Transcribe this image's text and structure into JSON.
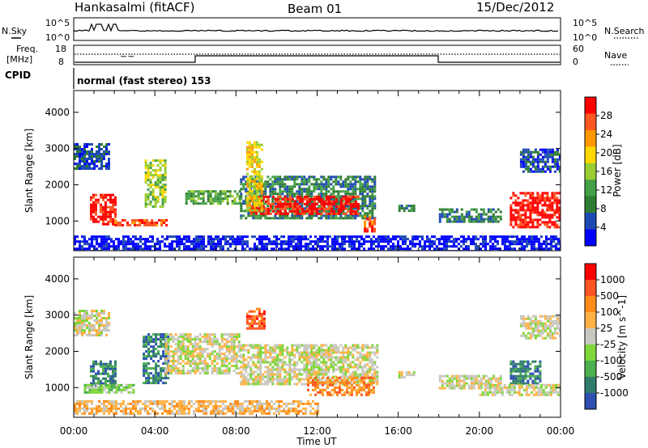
{
  "header": {
    "station": "Hankasalmi (fitACF)",
    "beam": "Beam 01",
    "date": "15/Dec/2012"
  },
  "top_panels": {
    "nsky_label": "N.Sky",
    "nsky_ticks": [
      "10^5",
      "10^0"
    ],
    "nsearch_label": "N.Search",
    "nsearch_ticks": [
      "10^5",
      "10^0"
    ],
    "freq_label_1": "Freq.",
    "freq_label_2": "[MHz]",
    "freq_ticks": [
      "18",
      "8"
    ],
    "nave_label": "Nave",
    "nave_ticks": [
      "60",
      "0"
    ],
    "cpid_label": "CPID",
    "cpid_text": "normal (fast stereo) 153"
  },
  "chart_data": [
    {
      "type": "heatmap",
      "name": "Power",
      "ylabel": "Slant Range [km]",
      "xlabel": "Time UT",
      "x_ticks": [
        "00:00",
        "04:00",
        "08:00",
        "12:00",
        "16:00",
        "20:00",
        "00:00"
      ],
      "x_range_hours": [
        0,
        24
      ],
      "y_ticks": [
        1000,
        2000,
        3000,
        4000
      ],
      "ylim": [
        180,
        4600
      ],
      "colorbar": {
        "label": "Power [dB]",
        "ticks": [
          4,
          8,
          12,
          16,
          20,
          24,
          28
        ],
        "range": [
          0,
          32
        ],
        "colors": [
          "#0000ff",
          "#1e4ab4",
          "#2e7d32",
          "#43a047",
          "#9acd32",
          "#ffd700",
          "#ff9800",
          "#ff5722",
          "#ff0000"
        ]
      },
      "regions": [
        {
          "t0": 0.0,
          "t1": 1.7,
          "r0": 2450,
          "r1": 3150,
          "level": 1
        },
        {
          "t0": 0.8,
          "t1": 2.0,
          "r0": 900,
          "r1": 1750,
          "level": 8
        },
        {
          "t0": 2.0,
          "t1": 4.6,
          "r0": 850,
          "r1": 1050,
          "level": 7
        },
        {
          "t0": 3.5,
          "t1": 4.5,
          "r0": 1400,
          "r1": 2700,
          "level": 4
        },
        {
          "t0": 5.5,
          "t1": 8.2,
          "r0": 1450,
          "r1": 1850,
          "level": 3
        },
        {
          "t0": 8.2,
          "t1": 14.8,
          "r0": 1100,
          "r1": 2250,
          "level": 2
        },
        {
          "t0": 8.7,
          "t1": 14.0,
          "r0": 1200,
          "r1": 1700,
          "level": 8
        },
        {
          "t0": 8.5,
          "t1": 9.3,
          "r0": 1300,
          "r1": 3200,
          "level": 5
        },
        {
          "t0": 14.3,
          "t1": 14.8,
          "r0": 700,
          "r1": 1150,
          "level": 7
        },
        {
          "t0": 16.0,
          "t1": 16.8,
          "r0": 1300,
          "r1": 1450,
          "level": 2
        },
        {
          "t0": 18.0,
          "t1": 21.0,
          "r0": 950,
          "r1": 1350,
          "level": 2
        },
        {
          "t0": 21.5,
          "t1": 24.0,
          "r0": 800,
          "r1": 1800,
          "level": 8
        },
        {
          "t0": 22.0,
          "t1": 24.0,
          "r0": 2350,
          "r1": 3000,
          "level": 1
        },
        {
          "t0": 0.0,
          "t1": 24.0,
          "r0": 180,
          "r1": 600,
          "level": 0
        }
      ]
    },
    {
      "type": "heatmap",
      "name": "Velocity",
      "ylabel": "Slant Range [km]",
      "xlabel": "Time UT",
      "x_ticks": [
        "00:00",
        "04:00",
        "08:00",
        "12:00",
        "16:00",
        "20:00",
        "00:00"
      ],
      "x_range_hours": [
        0,
        24
      ],
      "y_ticks": [
        1000,
        2000,
        3000,
        4000
      ],
      "ylim": [
        180,
        4600
      ],
      "colorbar": {
        "label": "Velocity [m s^-1]",
        "ticks": [
          1000,
          500,
          100,
          25,
          -25,
          -100,
          -500,
          -1000
        ],
        "colors": [
          "#2c4fb0",
          "#2e7d6a",
          "#4caf50",
          "#7fd63a",
          "#c8c8c0",
          "#ffb347",
          "#ff8c1a",
          "#ff5522",
          "#ff0000"
        ]
      },
      "regions": [
        {
          "t0": 0.0,
          "t1": 1.7,
          "r0": 2450,
          "r1": 3150,
          "level": 4
        },
        {
          "t0": 0.8,
          "t1": 2.0,
          "r0": 1050,
          "r1": 1750,
          "level": 1
        },
        {
          "t0": 0.5,
          "t1": 3.0,
          "r0": 850,
          "r1": 1100,
          "level": 3
        },
        {
          "t0": 3.4,
          "t1": 4.6,
          "r0": 1100,
          "r1": 2500,
          "level": 1
        },
        {
          "t0": 4.5,
          "t1": 8.2,
          "r0": 1400,
          "r1": 2500,
          "level": 4
        },
        {
          "t0": 8.2,
          "t1": 15.0,
          "r0": 1100,
          "r1": 2200,
          "level": 4
        },
        {
          "t0": 8.5,
          "t1": 9.4,
          "r0": 2600,
          "r1": 3200,
          "level": 7
        },
        {
          "t0": 11.5,
          "t1": 14.8,
          "r0": 800,
          "r1": 1300,
          "level": 6
        },
        {
          "t0": 16.0,
          "t1": 16.8,
          "r0": 1300,
          "r1": 1450,
          "level": 4
        },
        {
          "t0": 18.0,
          "t1": 21.0,
          "r0": 950,
          "r1": 1350,
          "level": 4
        },
        {
          "t0": 21.5,
          "t1": 23.0,
          "r0": 1100,
          "r1": 1750,
          "level": 1
        },
        {
          "t0": 20.0,
          "t1": 24.0,
          "r0": 800,
          "r1": 1100,
          "level": 4
        },
        {
          "t0": 22.0,
          "t1": 24.0,
          "r0": 2350,
          "r1": 3000,
          "level": 4
        },
        {
          "t0": 0.0,
          "t1": 12.0,
          "r0": 300,
          "r1": 650,
          "level": 5
        }
      ]
    }
  ]
}
